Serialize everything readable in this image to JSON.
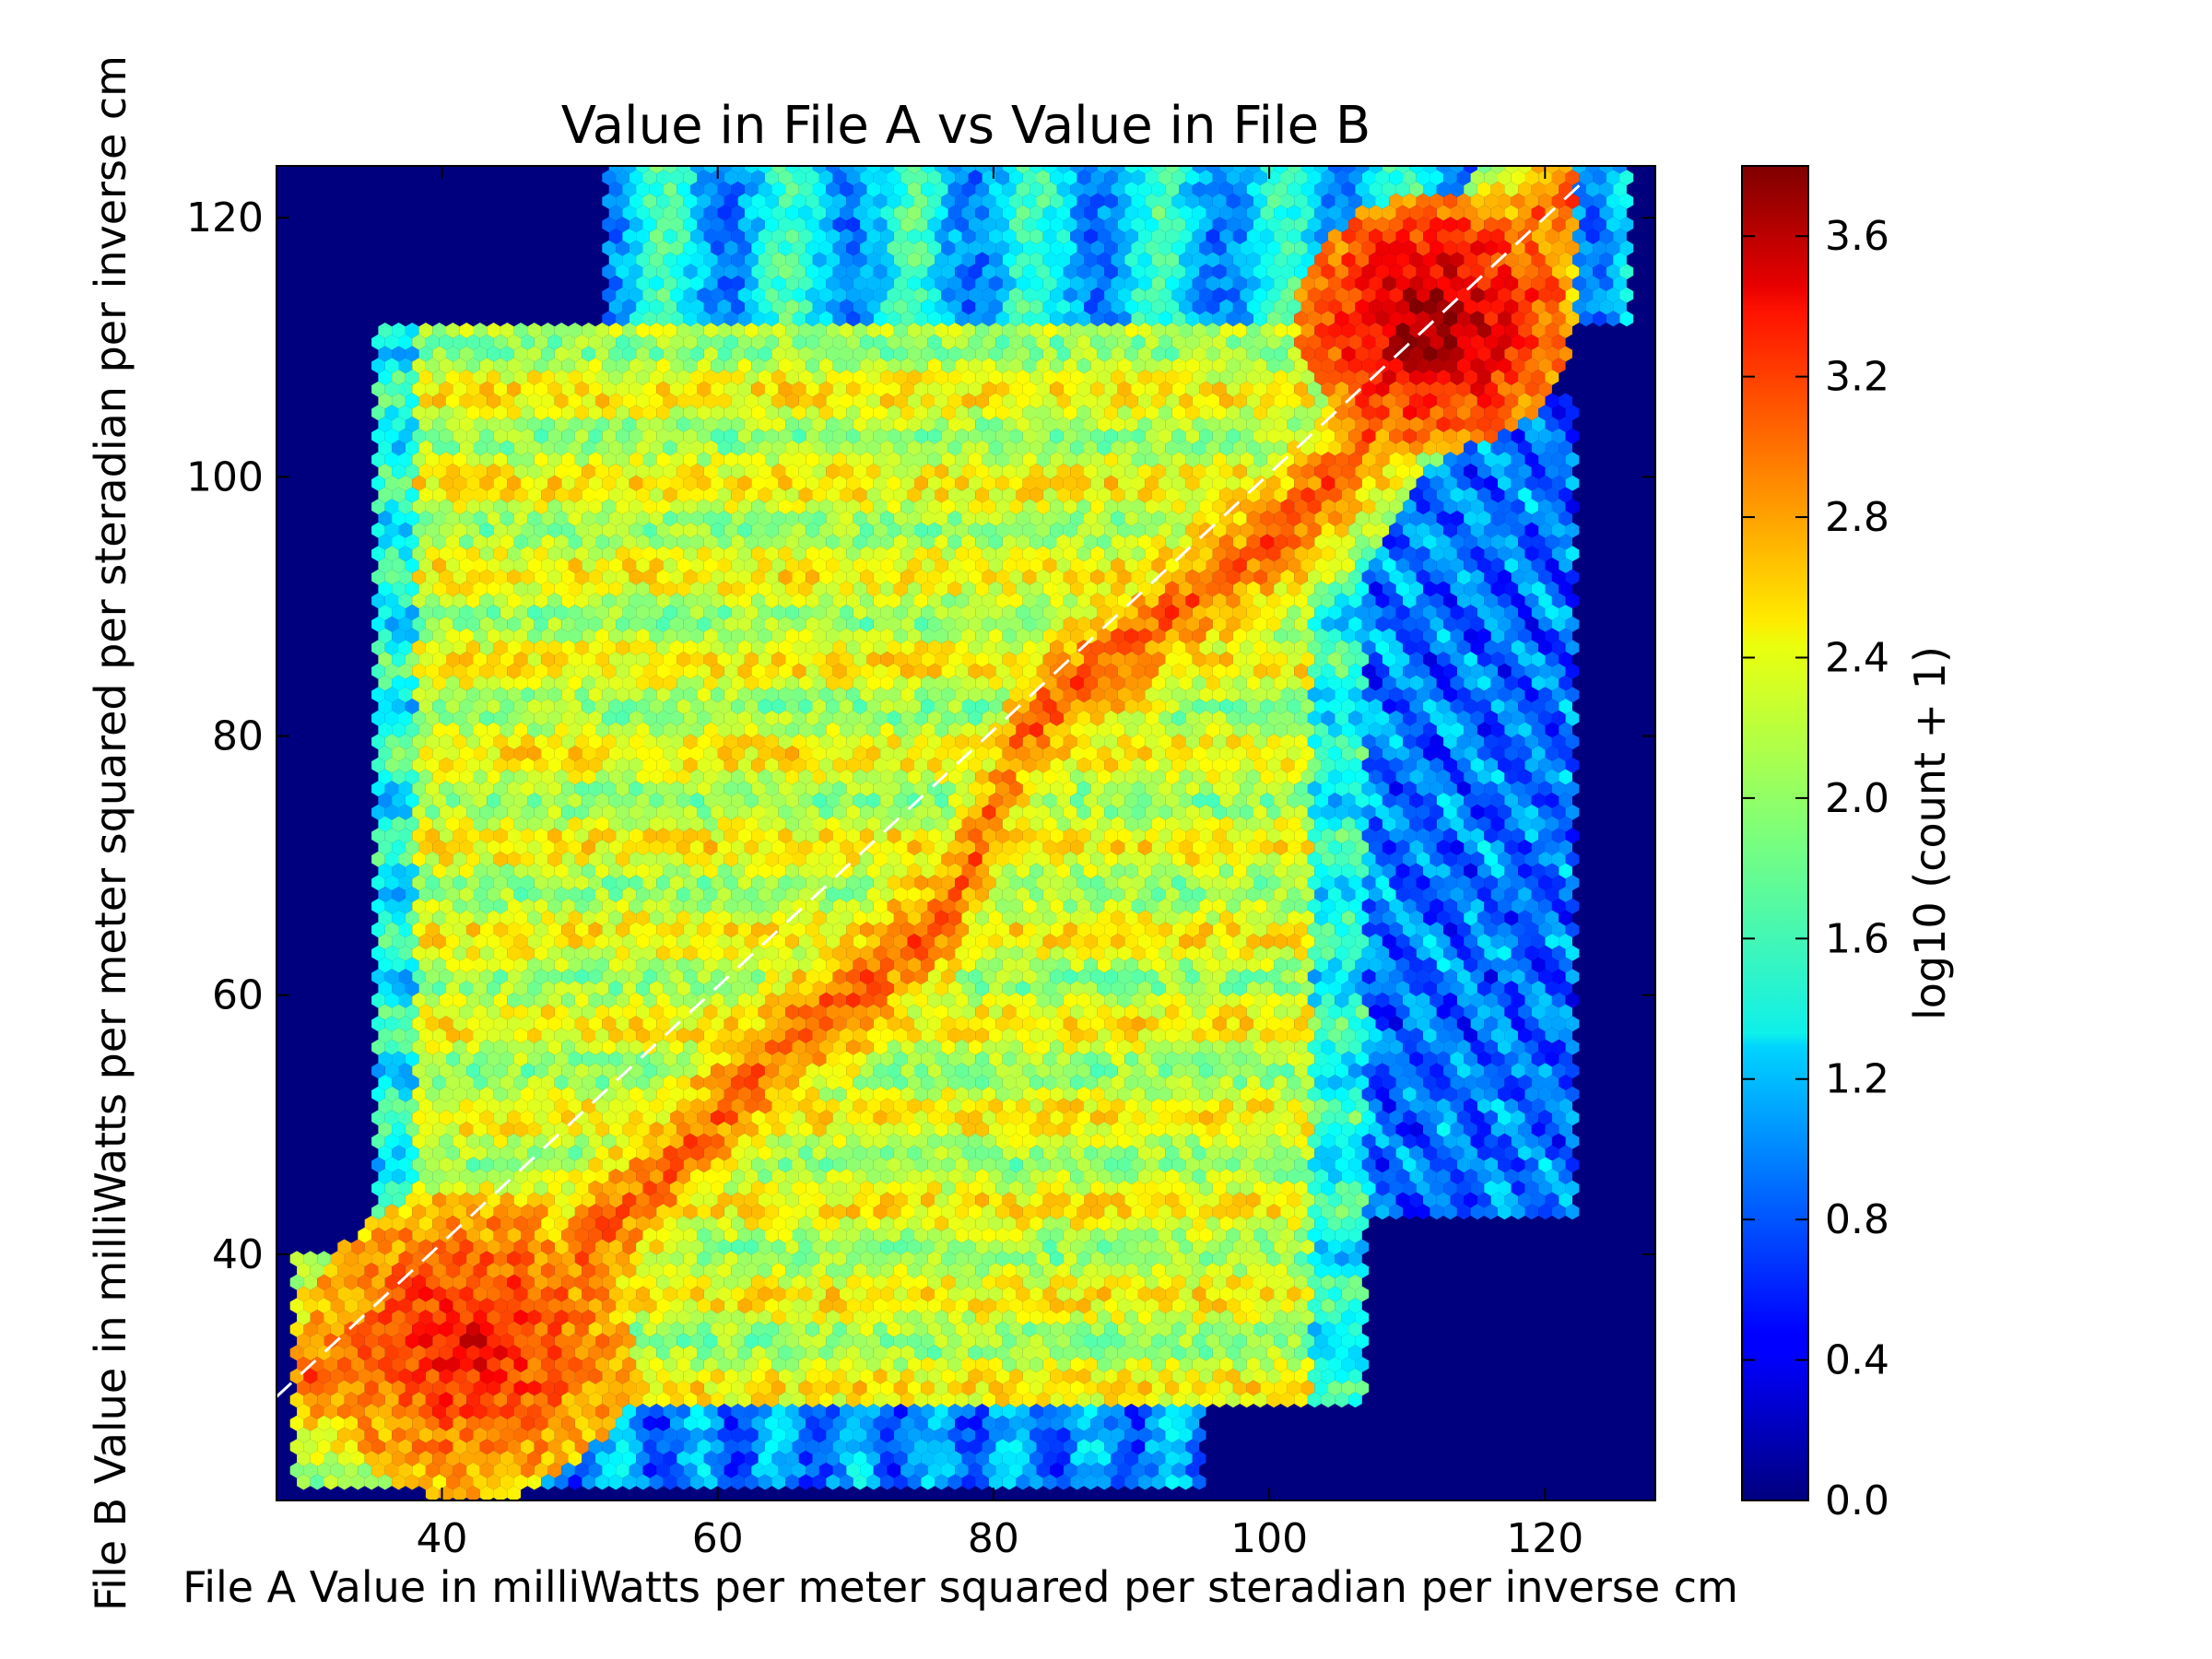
{
  "chart_data": {
    "type": "heatmap",
    "subtype": "hexbin",
    "title": "Value in File A vs Value in File B",
    "xlabel": "File A Value in milliWatts per meter squared per steradian per inverse cm",
    "ylabel": "File B Value in milliWatts per meter squared per steradian per inverse cm",
    "xlim": [
      28,
      128
    ],
    "ylim": [
      21,
      124
    ],
    "x_ticks": [
      40,
      60,
      80,
      100,
      120
    ],
    "y_ticks": [
      40,
      60,
      80,
      100,
      120
    ],
    "x_tick_labels": [
      "40",
      "60",
      "80",
      "100",
      "120"
    ],
    "y_tick_labels": [
      "40",
      "60",
      "80",
      "100",
      "120"
    ],
    "background_color": "#00007f",
    "reference_line": {
      "style": "dashed",
      "color": "#ffffff",
      "from": [
        28,
        29
      ],
      "to": [
        123,
        123
      ]
    },
    "colorbar": {
      "label": "log10 (count + 1)",
      "range": [
        0.0,
        3.8
      ],
      "ticks": [
        0.0,
        0.4,
        0.8,
        1.2,
        1.6,
        2.0,
        2.4,
        2.8,
        3.2,
        3.6
      ],
      "tick_labels": [
        "0.0",
        "0.4",
        "0.8",
        "1.2",
        "1.6",
        "2.0",
        "2.4",
        "2.8",
        "3.2",
        "3.6"
      ],
      "colormap": "jet"
    },
    "density_regions": {
      "main_block": {
        "x_range": [
          35,
          107
        ],
        "y_range": [
          28,
          112
        ],
        "base_value": 2.2
      },
      "right_sparse_block": {
        "x_range": [
          106,
          122
        ],
        "y_range": [
          43,
          106
        ],
        "base_value": 0.9
      },
      "top_sparse_band": {
        "x_range": [
          52,
          126
        ],
        "y_range": [
          112,
          124
        ],
        "base_value": 1.3
      },
      "bottom_sparse_band": {
        "x_range": [
          32,
          95
        ],
        "y_range": [
          22,
          29
        ],
        "base_value": 1.0
      },
      "ridge_points": [
        [
          30,
          31
        ],
        [
          36,
          31
        ],
        [
          42,
          34
        ],
        [
          48,
          38
        ],
        [
          55,
          45
        ],
        [
          60,
          51
        ],
        [
          66,
          57
        ],
        [
          72,
          62
        ],
        [
          77,
          67
        ],
        [
          80,
          74
        ],
        [
          82,
          80
        ],
        [
          86,
          84
        ],
        [
          90,
          87
        ],
        [
          95,
          91
        ],
        [
          100,
          95
        ],
        [
          104,
          99
        ],
        [
          108,
          104
        ],
        [
          112,
          110
        ],
        [
          116,
          116
        ],
        [
          120,
          121
        ]
      ],
      "peak": {
        "x": 112,
        "y": 112,
        "value": 3.8
      },
      "secondary_peak": {
        "x": 42,
        "y": 33,
        "value": 3.4
      }
    }
  }
}
